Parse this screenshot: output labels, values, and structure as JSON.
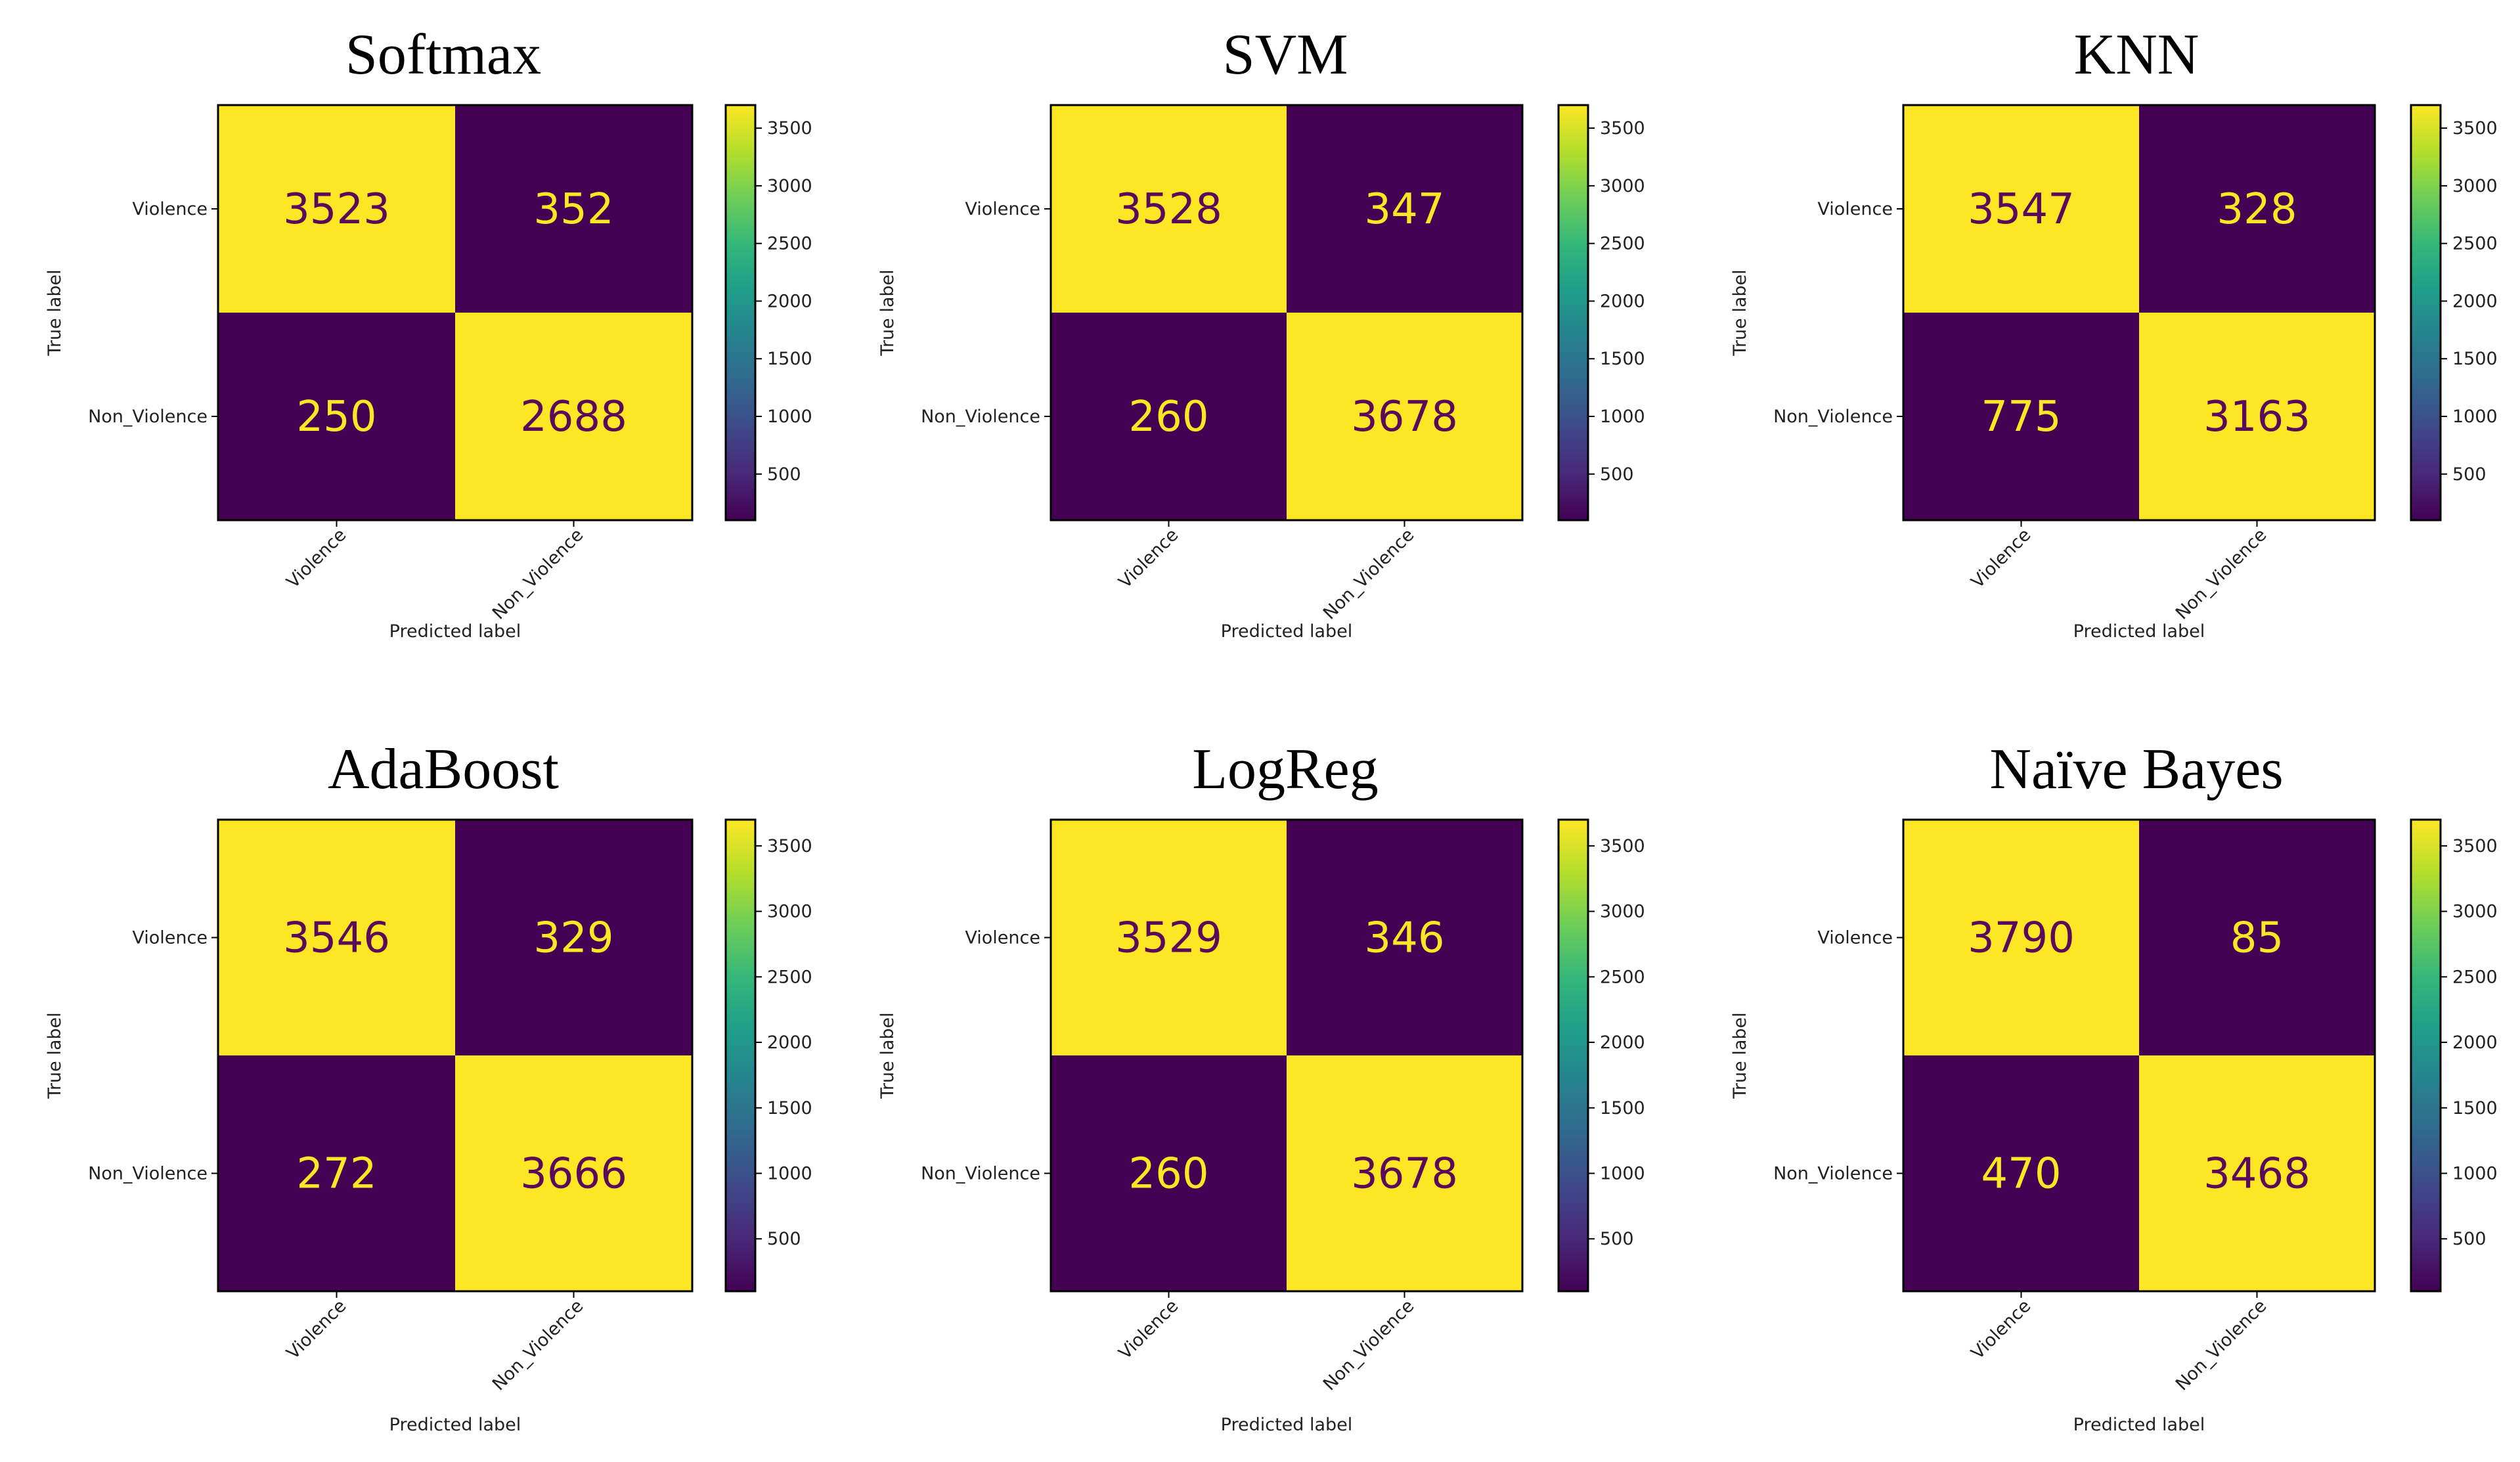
{
  "chart_data": [
    {
      "type": "heatmap",
      "title": "Softmax",
      "ylabel": "True label",
      "xlabel": "Predicted label",
      "row_labels": [
        "Violence",
        "Non_Violence"
      ],
      "col_labels": [
        "Violence",
        "Non_Violence"
      ],
      "values": [
        [
          3523,
          352
        ],
        [
          250,
          2688
        ]
      ]
    },
    {
      "type": "heatmap",
      "title": "SVM",
      "ylabel": "True label",
      "xlabel": "Predicted label",
      "row_labels": [
        "Violence",
        "Non_Violence"
      ],
      "col_labels": [
        "Violence",
        "Non_Violence"
      ],
      "values": [
        [
          3528,
          347
        ],
        [
          260,
          3678
        ]
      ]
    },
    {
      "type": "heatmap",
      "title": "KNN",
      "ylabel": "True label",
      "xlabel": "Predicted label",
      "row_labels": [
        "Violence",
        "Non_Violence"
      ],
      "col_labels": [
        "Violence",
        "Non_Violence"
      ],
      "values": [
        [
          3547,
          328
        ],
        [
          775,
          3163
        ]
      ]
    },
    {
      "type": "heatmap",
      "title": "AdaBoost",
      "ylabel": "True label",
      "xlabel": "Predicted label",
      "row_labels": [
        "Violence",
        "Non_Violence"
      ],
      "col_labels": [
        "Violence",
        "Non_Violence"
      ],
      "values": [
        [
          3546,
          329
        ],
        [
          272,
          3666
        ]
      ]
    },
    {
      "type": "heatmap",
      "title": "LogReg",
      "ylabel": "True label",
      "xlabel": "Predicted label",
      "row_labels": [
        "Violence",
        "Non_Violence"
      ],
      "col_labels": [
        "Violence",
        "Non_Violence"
      ],
      "values": [
        [
          3529,
          346
        ],
        [
          260,
          3678
        ]
      ]
    },
    {
      "type": "heatmap",
      "title": "Naïve Bayes",
      "ylabel": "True label",
      "xlabel": "Predicted label",
      "row_labels": [
        "Violence",
        "Non_Violence"
      ],
      "col_labels": [
        "Violence",
        "Non_Violence"
      ],
      "values": [
        [
          3790,
          85
        ],
        [
          470,
          3468
        ]
      ]
    }
  ],
  "colorbar": {
    "ticks": [
      500,
      1000,
      1500,
      2000,
      2500,
      3000,
      3500
    ],
    "range": [
      100,
      3700
    ],
    "colormap": "viridis",
    "colors": [
      "#440154",
      "#482878",
      "#3e4989",
      "#31688e",
      "#26828e",
      "#1f9e89",
      "#35b779",
      "#6ece58",
      "#b5de2b",
      "#fde725"
    ],
    "high_cell_color": "#fde725",
    "low_cell_color": "#440154",
    "value_text_color": "#5a0a5a",
    "value_text_color_on_dark": "#fde725"
  }
}
